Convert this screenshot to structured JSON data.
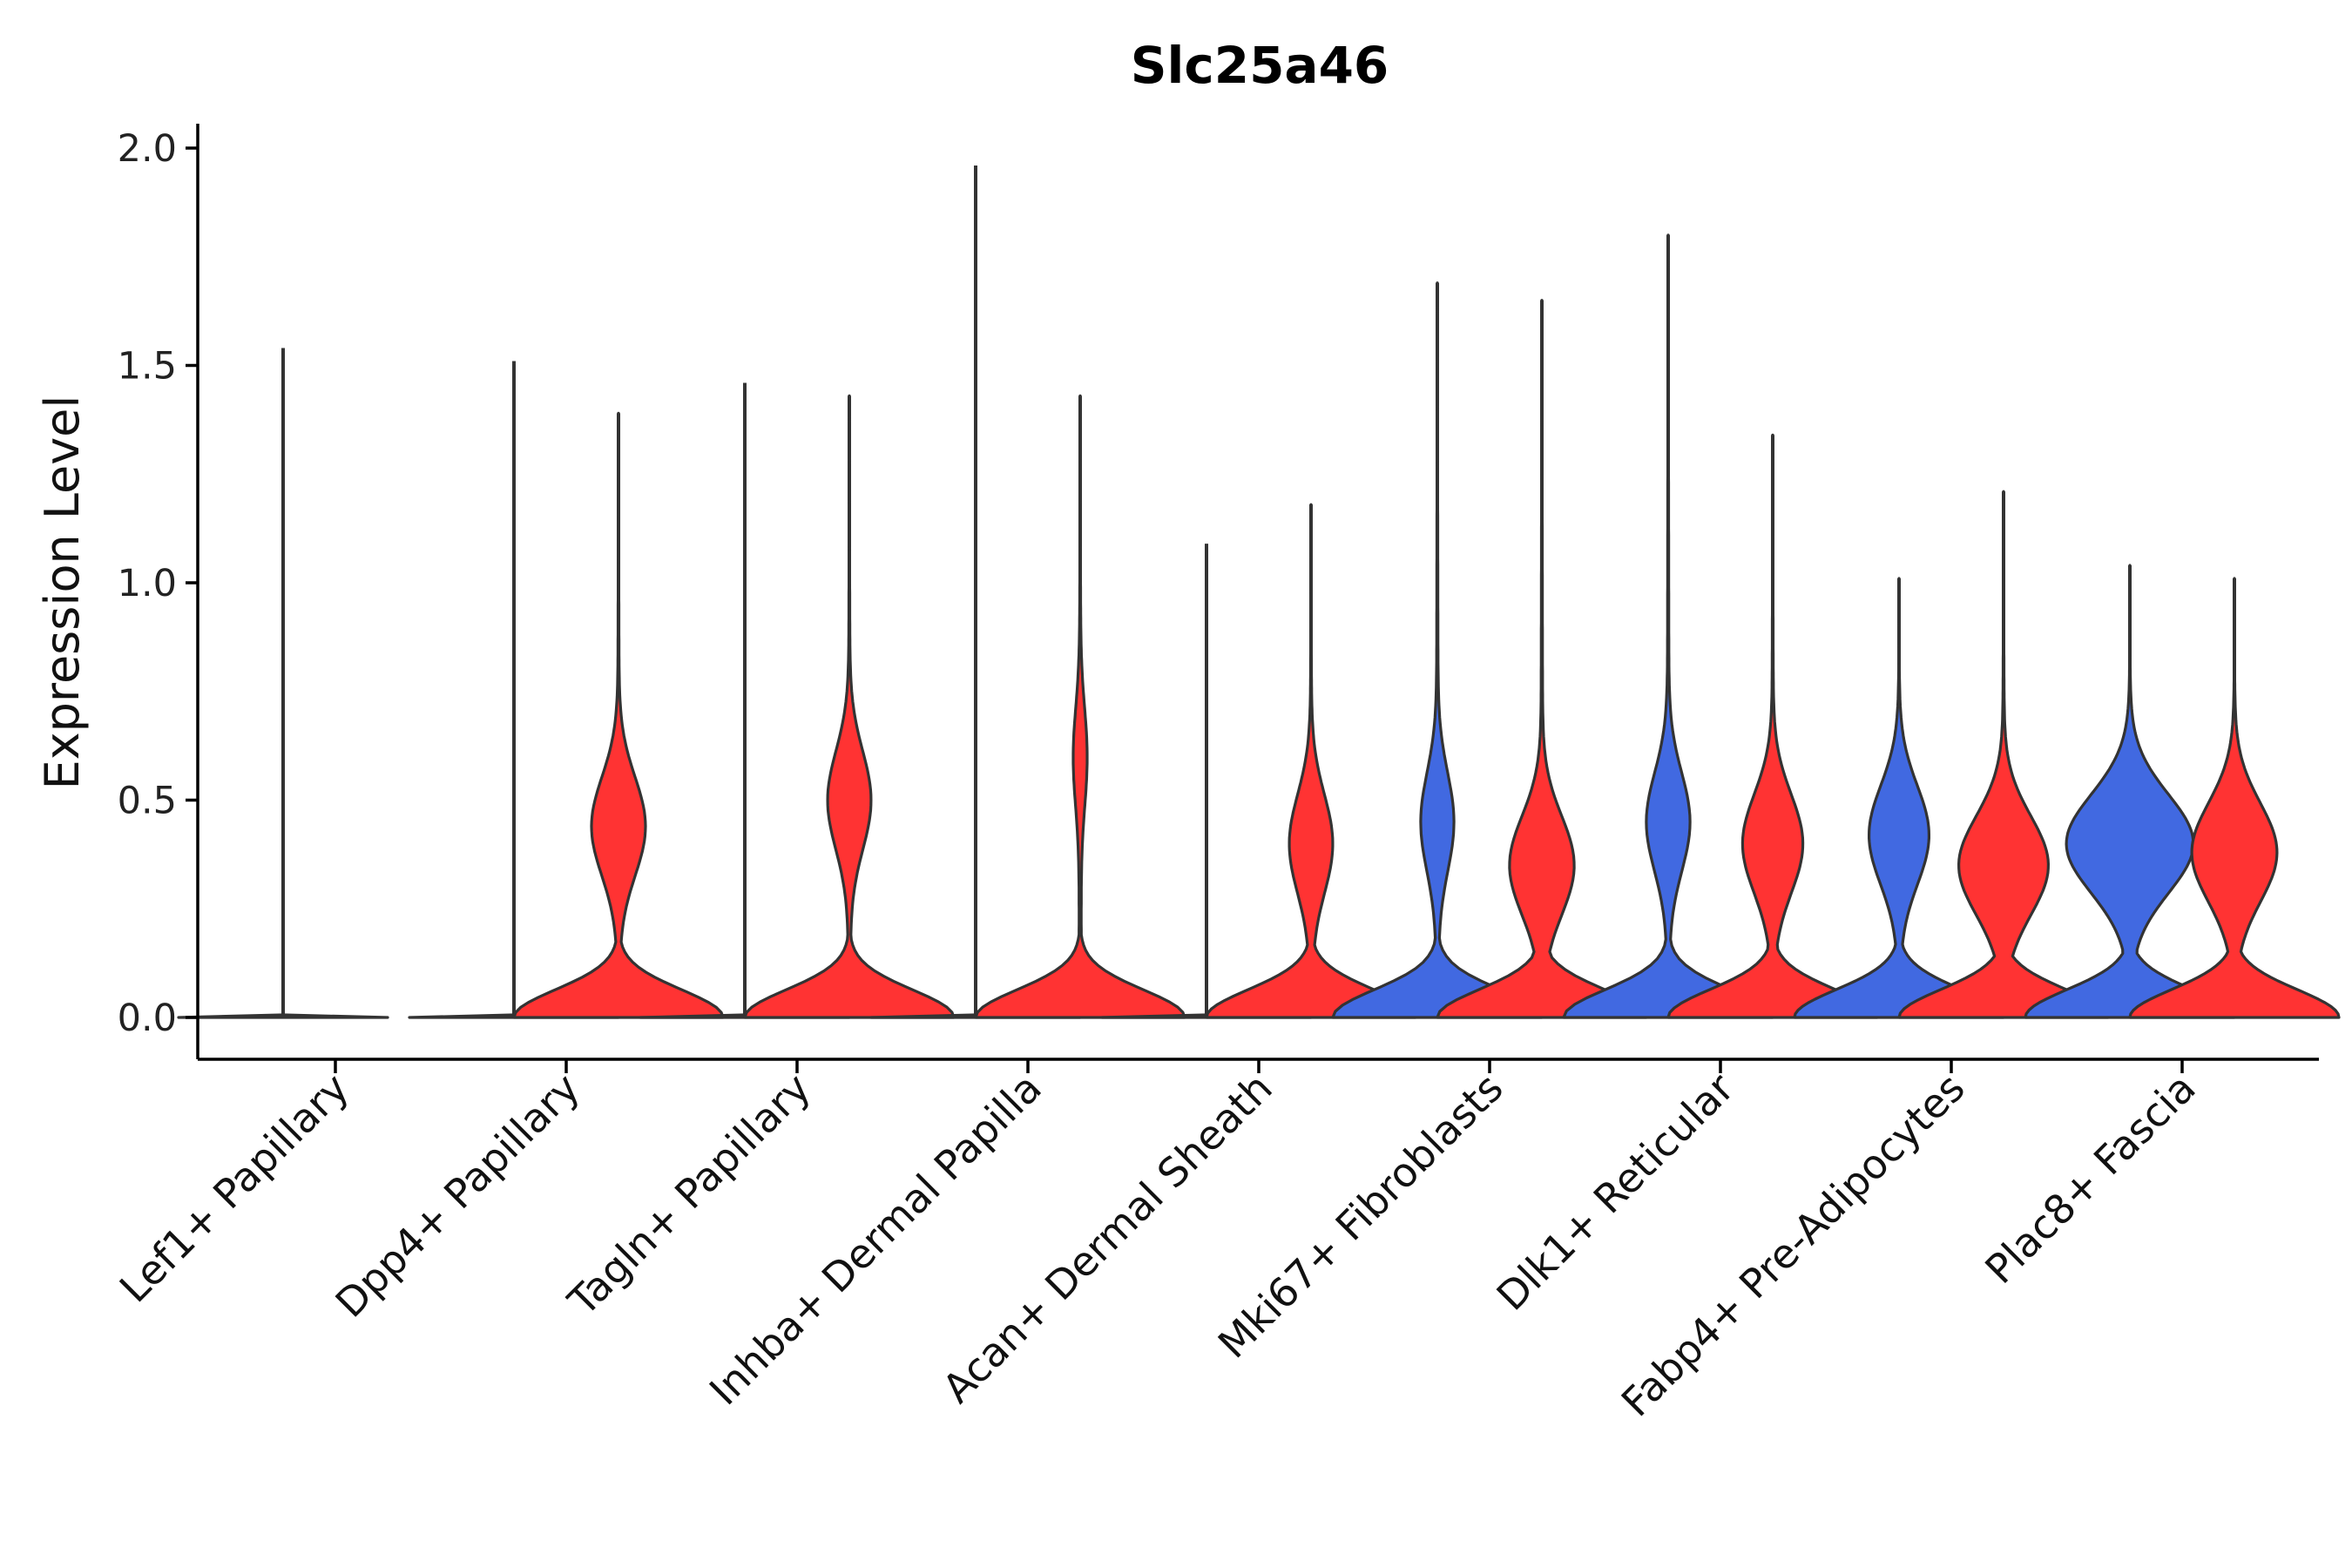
{
  "chart_data": {
    "type": "violin",
    "title": "Slc25a46",
    "xlabel": "",
    "ylabel": "Expression Level",
    "ylim": [
      -0.1,
      2.05
    ],
    "yticks": [
      "0.0",
      "0.5",
      "1.0",
      "1.5",
      "2.0"
    ],
    "grid": false,
    "legend": "none",
    "colors": {
      "blue": "#4169E1",
      "red": "#FF3333",
      "outline": "#333333"
    },
    "categories": [
      "Lef1+ Papillary",
      "Dpp4+ Papillary",
      "Tagln+ Papillary",
      "Inhba+ Dermal Papilla",
      "Acan+ Dermal Sheath",
      "Mki67+ Fibroblasts",
      "Dlk1+ Reticular",
      "Fabp4+ Pre-Adipocytes",
      "Plac8+ Fascia"
    ],
    "violins": [
      {
        "category": "Lef1+ Papillary",
        "group": "blue",
        "max": 1.54,
        "base_width": 1.0,
        "nonzero_width": 0.0,
        "peak": 0.0
      },
      {
        "category": "Dpp4+ Papillary",
        "group": "blue",
        "max": 1.51,
        "base_width": 1.0,
        "nonzero_width": 0.0,
        "peak": 0.0
      },
      {
        "category": "Dpp4+ Papillary",
        "group": "red",
        "max": 1.39,
        "base_width": 1.0,
        "nonzero_width": 0.25,
        "peak": 0.44
      },
      {
        "category": "Tagln+ Papillary",
        "group": "blue",
        "max": 1.46,
        "base_width": 1.0,
        "nonzero_width": 0.0,
        "peak": 0.0
      },
      {
        "category": "Tagln+ Papillary",
        "group": "red",
        "max": 1.43,
        "base_width": 1.0,
        "nonzero_width": 0.2,
        "peak": 0.5
      },
      {
        "category": "Inhba+ Dermal Papilla",
        "group": "blue",
        "max": 1.96,
        "base_width": 1.0,
        "nonzero_width": 0.0,
        "peak": 0.0
      },
      {
        "category": "Inhba+ Dermal Papilla",
        "group": "red",
        "max": 1.43,
        "base_width": 1.0,
        "nonzero_width": 0.06,
        "peak": 0.6
      },
      {
        "category": "Acan+ Dermal Sheath",
        "group": "blue",
        "max": 1.09,
        "base_width": 1.0,
        "nonzero_width": 0.0,
        "peak": 0.0
      },
      {
        "category": "Acan+ Dermal Sheath",
        "group": "red",
        "max": 1.18,
        "base_width": 1.0,
        "nonzero_width": 0.2,
        "peak": 0.4
      },
      {
        "category": "Mki67+ Fibroblasts",
        "group": "blue",
        "max": 1.69,
        "base_width": 1.0,
        "nonzero_width": 0.15,
        "peak": 0.45
      },
      {
        "category": "Mki67+ Fibroblasts",
        "group": "red",
        "max": 1.65,
        "base_width": 1.0,
        "nonzero_width": 0.3,
        "peak": 0.35
      },
      {
        "category": "Dlk1+ Reticular",
        "group": "blue",
        "max": 1.8,
        "base_width": 1.0,
        "nonzero_width": 0.2,
        "peak": 0.45
      },
      {
        "category": "Dlk1+ Reticular",
        "group": "red",
        "max": 1.34,
        "base_width": 1.0,
        "nonzero_width": 0.28,
        "peak": 0.4
      },
      {
        "category": "Fabp4+ Pre-Adipocytes",
        "group": "blue",
        "max": 1.01,
        "base_width": 1.0,
        "nonzero_width": 0.28,
        "peak": 0.42
      },
      {
        "category": "Fabp4+ Pre-Adipocytes",
        "group": "red",
        "max": 1.21,
        "base_width": 1.0,
        "nonzero_width": 0.42,
        "peak": 0.35
      },
      {
        "category": "Plac8+ Fascia",
        "group": "blue",
        "max": 1.04,
        "base_width": 1.0,
        "nonzero_width": 0.6,
        "peak": 0.4
      },
      {
        "category": "Plac8+ Fascia",
        "group": "red",
        "max": 1.01,
        "base_width": 1.0,
        "nonzero_width": 0.4,
        "peak": 0.38
      }
    ]
  }
}
